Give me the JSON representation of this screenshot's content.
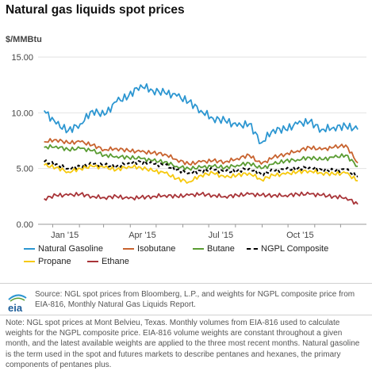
{
  "title": "Natural gas liquids spot prices",
  "unit": "$/MMBtu",
  "source": "Source: NGL spot prices from Bloomberg, L.P., and weights for NGPL composite price from EIA-816, Monthly Natural Gas Liquids Report.",
  "note": "Note: NGL spot prices at Mont Belvieu, Texas. Monthly volumes from EIA-816 used to calculate weights for the NGPL composite price. EIA-816 volume weights are constant throughout a given month, and the latest available weights are applied to the three most recent months. Natural gasoline is the term used in the spot and futures markets to describe pentanes and hexanes, the primary components of pentanes plus.",
  "logo_text": "eia",
  "chart_data": {
    "type": "line",
    "title": "Natural gas liquids spot prices",
    "ylabel": "$/MMBtu",
    "ylim": [
      0,
      15
    ],
    "yticks": [
      "0.00",
      "5.00",
      "10.00",
      "15.00"
    ],
    "xticks": [
      "Jan '15",
      "Apr '15",
      "Jul '15",
      "Oct '15"
    ],
    "grid": true,
    "legend_position": "bottom",
    "x": [
      "2014-12-22",
      "2015-01-05",
      "2015-01-19",
      "2015-02-02",
      "2015-02-16",
      "2015-03-02",
      "2015-03-16",
      "2015-03-30",
      "2015-04-13",
      "2015-04-27",
      "2015-05-11",
      "2015-05-25",
      "2015-06-08",
      "2015-06-22",
      "2015-07-06",
      "2015-07-20",
      "2015-08-03",
      "2015-08-17",
      "2015-08-31",
      "2015-09-14",
      "2015-09-28",
      "2015-10-12",
      "2015-10-26",
      "2015-11-09",
      "2015-11-23",
      "2015-12-07",
      "2015-12-21"
    ],
    "series": [
      {
        "name": "Natural Gasoline",
        "color": "#2c96d1",
        "dashed": false,
        "values": [
          10.2,
          9.0,
          8.4,
          9.0,
          10.2,
          9.8,
          11.0,
          11.5,
          12.5,
          12.0,
          11.8,
          11.5,
          11.0,
          10.2,
          9.5,
          9.3,
          8.8,
          9.0,
          7.3,
          8.5,
          8.5,
          9.0,
          9.2,
          8.5,
          8.7,
          8.8,
          8.5
        ]
      },
      {
        "name": "Isobutane",
        "color": "#c8632f",
        "dashed": false,
        "values": [
          7.4,
          7.6,
          7.3,
          7.4,
          7.1,
          6.7,
          6.8,
          6.6,
          6.5,
          6.4,
          6.3,
          5.8,
          5.4,
          5.6,
          5.7,
          5.6,
          5.9,
          6.2,
          5.4,
          6.0,
          6.3,
          6.6,
          6.9,
          6.7,
          6.9,
          7.1,
          5.5
        ]
      },
      {
        "name": "Butane",
        "color": "#5a9c32",
        "dashed": false,
        "values": [
          6.9,
          7.0,
          6.7,
          6.8,
          6.6,
          6.2,
          6.1,
          6.0,
          5.9,
          5.7,
          5.6,
          5.2,
          5.0,
          5.1,
          5.2,
          5.1,
          5.3,
          5.5,
          5.0,
          5.4,
          5.7,
          5.8,
          6.0,
          5.8,
          6.0,
          6.2,
          5.2
        ]
      },
      {
        "name": "NGPL Composite",
        "color": "#000000",
        "dashed": true,
        "values": [
          5.6,
          5.4,
          5.0,
          5.2,
          5.4,
          5.3,
          5.2,
          5.5,
          5.6,
          5.4,
          5.3,
          4.9,
          4.6,
          4.8,
          4.9,
          4.7,
          4.8,
          5.0,
          4.5,
          4.8,
          4.9,
          5.0,
          5.1,
          4.9,
          4.8,
          4.9,
          4.3
        ]
      },
      {
        "name": "Propane",
        "color": "#f6c90e",
        "dashed": false,
        "values": [
          5.3,
          5.1,
          4.7,
          5.0,
          5.2,
          5.1,
          4.9,
          5.2,
          5.1,
          4.8,
          4.6,
          4.1,
          3.8,
          4.4,
          4.6,
          4.2,
          4.4,
          4.6,
          4.0,
          4.4,
          4.5,
          4.7,
          4.8,
          4.6,
          4.5,
          4.6,
          3.9
        ]
      },
      {
        "name": "Ethane",
        "color": "#a83438",
        "dashed": false,
        "values": [
          2.3,
          2.6,
          2.6,
          2.7,
          2.5,
          2.4,
          2.5,
          2.3,
          2.4,
          2.5,
          2.6,
          2.5,
          2.6,
          2.7,
          2.6,
          2.5,
          2.6,
          2.7,
          2.6,
          2.6,
          2.6,
          2.7,
          2.7,
          2.6,
          2.5,
          2.4,
          1.8
        ]
      }
    ]
  }
}
